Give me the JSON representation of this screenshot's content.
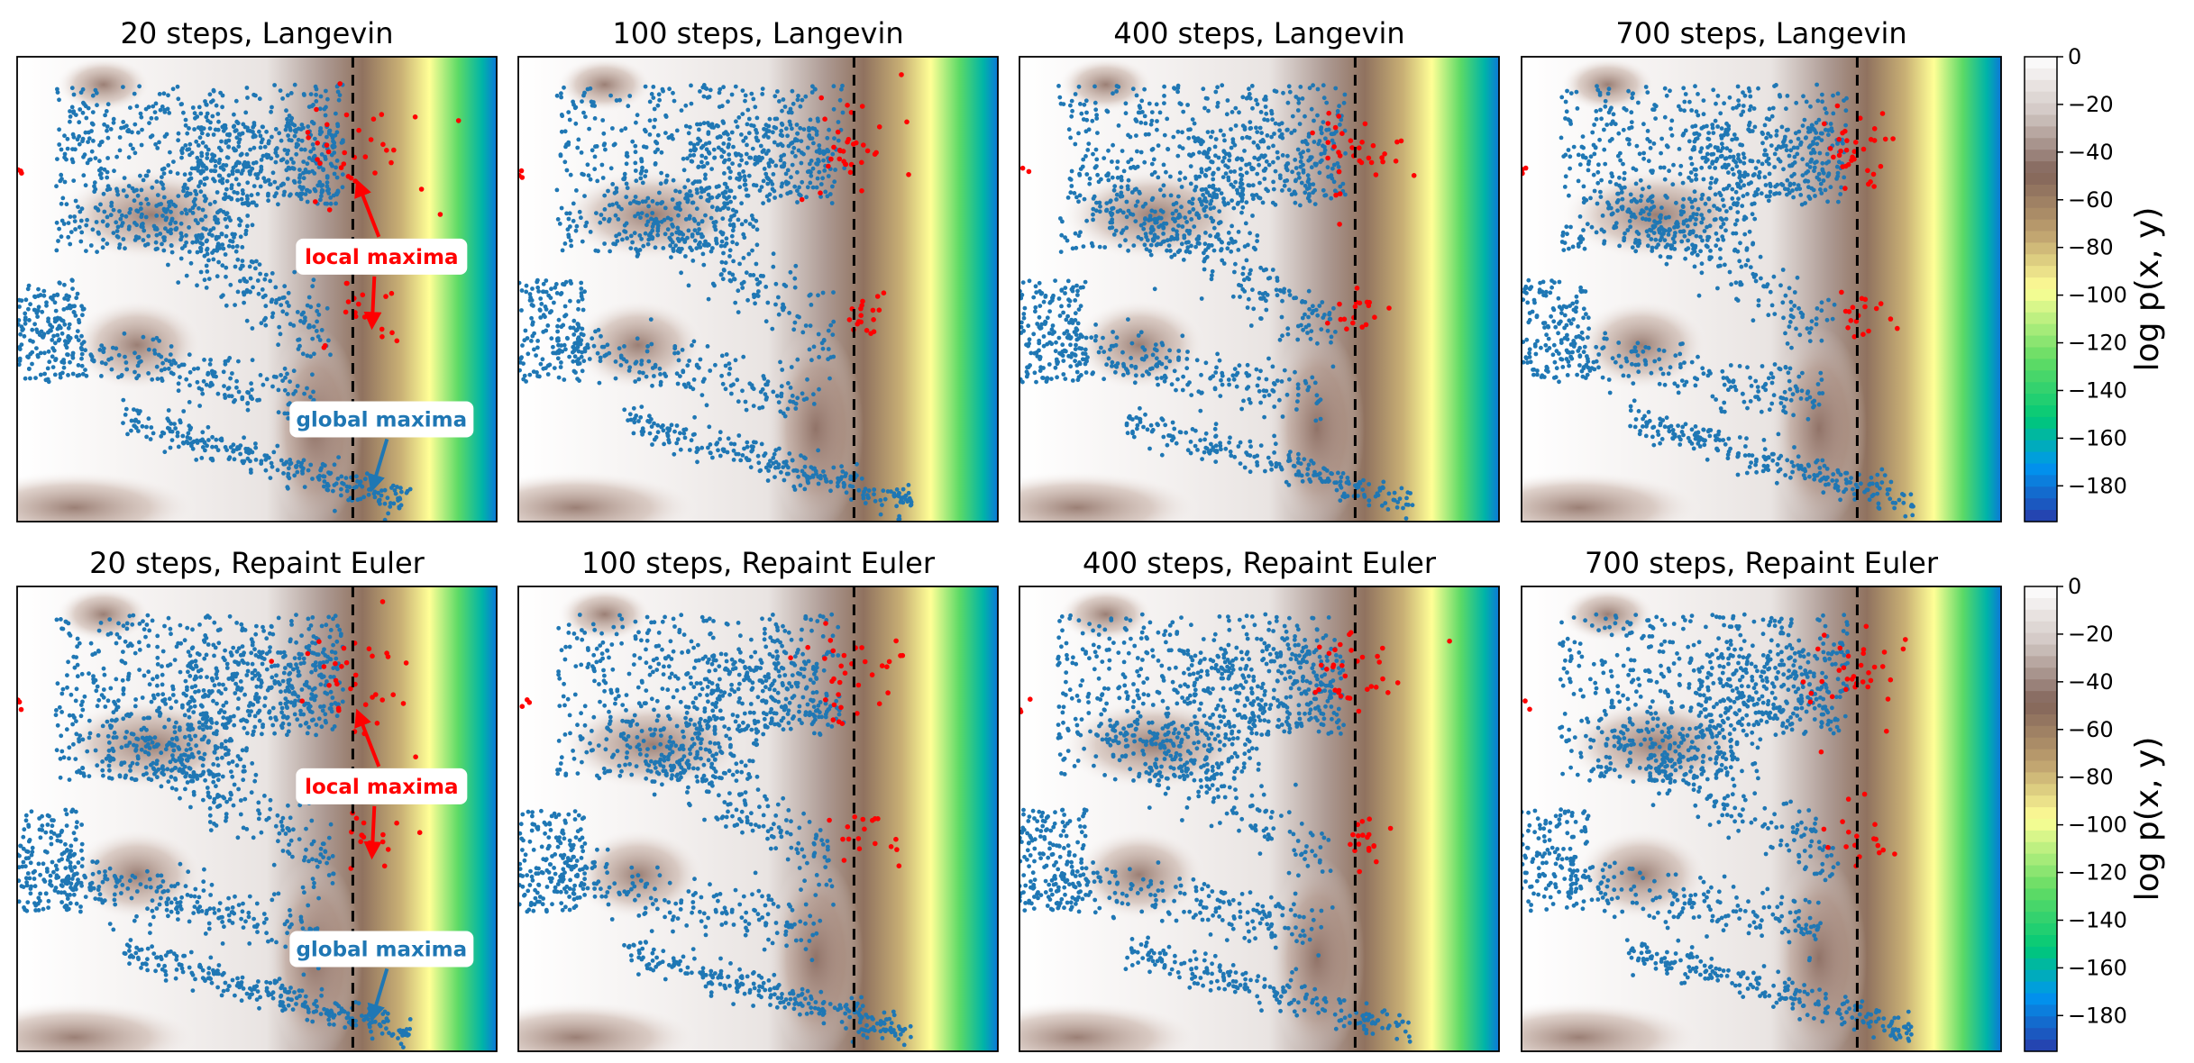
{
  "colors": {
    "blue_points": "#1f77b4",
    "red_points": "#ff0000",
    "dashed_line": "#000000"
  },
  "chart_data": {
    "type": "scatter",
    "layout": "2x4 grid of contour plots with sample scatter, two colorbars",
    "background": "filled contour of log p(x, y), terrain colormap",
    "vline": "dashed black vertical line in each panel",
    "panels": [
      {
        "title": "20 steps, Langevin",
        "row": 0,
        "col": 0,
        "seed": 11,
        "annotated": true
      },
      {
        "title": "100 steps, Langevin",
        "row": 0,
        "col": 1,
        "seed": 23,
        "annotated": false
      },
      {
        "title": "400 steps, Langevin",
        "row": 0,
        "col": 2,
        "seed": 37,
        "annotated": false
      },
      {
        "title": "700 steps, Langevin",
        "row": 0,
        "col": 3,
        "seed": 41,
        "annotated": false
      },
      {
        "title": "20 steps, Repaint Euler",
        "row": 1,
        "col": 0,
        "seed": 53,
        "annotated": true
      },
      {
        "title": "100 steps, Repaint Euler",
        "row": 1,
        "col": 1,
        "seed": 67,
        "annotated": false
      },
      {
        "title": "400 steps, Repaint Euler",
        "row": 1,
        "col": 2,
        "seed": 71,
        "annotated": false
      },
      {
        "title": "700 steps, Repaint Euler",
        "row": 1,
        "col": 3,
        "seed": 83,
        "annotated": false
      }
    ],
    "annotations": {
      "local": {
        "text": "local maxima",
        "color": "#ff0000"
      },
      "global": {
        "text": "global maxima",
        "color": "#1f77b4"
      }
    },
    "colorbar": {
      "label": "log p(x, y)",
      "range": [
        -195,
        0
      ],
      "ticks": [
        0,
        -20,
        -40,
        -60,
        -80,
        -100,
        -120,
        -140,
        -160,
        -180
      ],
      "tick_labels": [
        "0",
        "−20",
        "−40",
        "−60",
        "−80",
        "−100",
        "−120",
        "−140",
        "−160",
        "−180"
      ]
    }
  }
}
